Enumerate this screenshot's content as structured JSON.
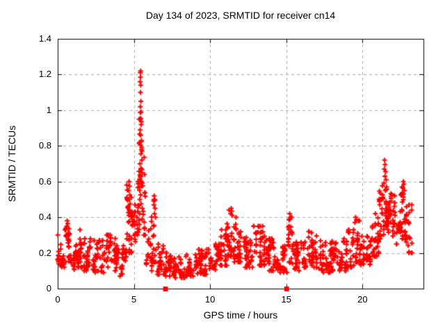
{
  "chart_data": {
    "type": "scatter",
    "title": "Day 134 of 2023, SRMTID for receiver cn14",
    "xlabel": "GPS time / hours",
    "ylabel": "SRMTID / TECUs",
    "xlim": [
      0,
      24
    ],
    "ylim": [
      0,
      1.4
    ],
    "xticks": {
      "values": [
        0,
        5,
        10,
        15,
        20
      ],
      "labels": [
        "0",
        "5",
        "10",
        "15",
        "20"
      ]
    },
    "yticks": {
      "values": [
        0,
        0.2,
        0.4,
        0.6,
        0.8,
        1.0,
        1.2,
        1.4
      ],
      "labels": [
        "0",
        "0.2",
        "0.4",
        "0.6",
        "0.8",
        "1",
        "1.2",
        "1.4"
      ]
    },
    "grid": true,
    "legend": "none",
    "colors": {
      "marker": "#ff0000",
      "grid": "#a8a8a8",
      "axis": "#000000",
      "background": "#ffffff"
    },
    "marker": "plus",
    "seed": 7,
    "series": [
      {
        "name": "SRMTID",
        "band_segments": [
          [
            0.0,
            0.5,
            30,
            0.12,
            0.3
          ],
          [
            0.5,
            0.8,
            25,
            0.15,
            0.36
          ],
          [
            0.8,
            1.3,
            30,
            0.07,
            0.26
          ],
          [
            1.3,
            1.6,
            22,
            0.12,
            0.33
          ],
          [
            1.6,
            2.3,
            40,
            0.1,
            0.28
          ],
          [
            2.3,
            3.1,
            45,
            0.09,
            0.27
          ],
          [
            3.1,
            3.9,
            45,
            0.1,
            0.3
          ],
          [
            3.9,
            4.5,
            35,
            0.07,
            0.24
          ],
          [
            4.5,
            4.85,
            25,
            0.2,
            0.58
          ],
          [
            4.85,
            5.15,
            20,
            0.25,
            0.47
          ],
          [
            5.15,
            5.35,
            15,
            0.3,
            0.6
          ],
          [
            5.35,
            5.55,
            18,
            0.45,
            1.05
          ],
          [
            5.55,
            5.8,
            18,
            0.3,
            0.85
          ],
          [
            5.8,
            6.2,
            25,
            0.1,
            0.42
          ],
          [
            6.2,
            6.5,
            20,
            0.15,
            0.5
          ],
          [
            6.5,
            7.0,
            30,
            0.08,
            0.25
          ],
          [
            7.0,
            7.6,
            35,
            0.07,
            0.2
          ],
          [
            7.6,
            8.4,
            45,
            0.06,
            0.18
          ],
          [
            8.4,
            9.2,
            45,
            0.07,
            0.19
          ],
          [
            9.2,
            10.0,
            45,
            0.08,
            0.22
          ],
          [
            10.0,
            10.7,
            40,
            0.09,
            0.25
          ],
          [
            10.7,
            11.1,
            28,
            0.13,
            0.33
          ],
          [
            11.1,
            11.6,
            35,
            0.18,
            0.44
          ],
          [
            11.6,
            12.1,
            32,
            0.15,
            0.4
          ],
          [
            12.1,
            12.8,
            40,
            0.12,
            0.32
          ],
          [
            12.8,
            13.6,
            45,
            0.13,
            0.35
          ],
          [
            13.6,
            14.4,
            45,
            0.1,
            0.28
          ],
          [
            14.4,
            15.1,
            40,
            0.09,
            0.24
          ],
          [
            15.1,
            15.45,
            25,
            0.14,
            0.4
          ],
          [
            15.45,
            16.2,
            40,
            0.1,
            0.3
          ],
          [
            16.2,
            17.0,
            45,
            0.12,
            0.32
          ],
          [
            17.0,
            18.0,
            55,
            0.09,
            0.27
          ],
          [
            18.0,
            19.0,
            55,
            0.1,
            0.28
          ],
          [
            19.0,
            19.45,
            28,
            0.12,
            0.33
          ],
          [
            19.45,
            19.8,
            22,
            0.15,
            0.38
          ],
          [
            19.8,
            20.6,
            45,
            0.13,
            0.3
          ],
          [
            20.6,
            21.1,
            32,
            0.18,
            0.42
          ],
          [
            21.1,
            21.4,
            25,
            0.28,
            0.58
          ],
          [
            21.4,
            21.65,
            20,
            0.35,
            0.68
          ],
          [
            21.65,
            22.1,
            30,
            0.28,
            0.55
          ],
          [
            22.1,
            22.5,
            28,
            0.25,
            0.52
          ],
          [
            22.5,
            22.85,
            26,
            0.28,
            0.6
          ],
          [
            22.85,
            23.25,
            26,
            0.2,
            0.47
          ]
        ],
        "peak_points": [
          [
            5.42,
            1.21
          ],
          [
            5.44,
            1.22
          ],
          [
            5.43,
            1.185
          ],
          [
            5.41,
            1.16
          ],
          [
            5.45,
            1.14
          ],
          [
            5.43,
            1.1
          ],
          [
            5.46,
            1.05
          ],
          [
            5.42,
            1.02
          ],
          [
            5.47,
            0.99
          ],
          [
            5.44,
            0.955
          ],
          [
            5.48,
            0.92
          ],
          [
            5.41,
            0.89
          ],
          [
            5.45,
            0.86
          ],
          [
            5.49,
            0.83
          ],
          [
            5.43,
            0.805
          ],
          [
            5.5,
            0.78
          ],
          [
            5.46,
            0.755
          ],
          [
            5.52,
            0.72
          ],
          [
            5.4,
            0.7
          ],
          [
            5.47,
            0.675
          ],
          [
            5.53,
            0.65
          ],
          [
            5.42,
            0.625
          ],
          [
            5.49,
            0.6
          ],
          [
            5.51,
            0.575
          ],
          [
            5.38,
            0.55
          ],
          [
            5.44,
            0.525
          ],
          [
            5.39,
            0.5
          ],
          [
            5.47,
            0.475
          ],
          [
            5.55,
            0.45
          ],
          [
            5.37,
            0.42
          ],
          [
            5.54,
            0.39
          ],
          [
            5.36,
            0.36
          ],
          [
            4.68,
            0.6
          ],
          [
            4.71,
            0.575
          ],
          [
            4.66,
            0.55
          ],
          [
            4.73,
            0.525
          ],
          [
            4.69,
            0.5
          ],
          [
            4.75,
            0.475
          ],
          [
            4.64,
            0.45
          ],
          [
            4.72,
            0.43
          ],
          [
            4.67,
            0.41
          ],
          [
            6.33,
            0.52
          ],
          [
            6.37,
            0.495
          ],
          [
            6.31,
            0.47
          ],
          [
            6.39,
            0.45
          ],
          [
            6.35,
            0.42
          ],
          [
            6.41,
            0.4
          ],
          [
            11.38,
            0.45
          ],
          [
            11.42,
            0.435
          ],
          [
            11.35,
            0.42
          ],
          [
            11.45,
            0.41
          ],
          [
            15.22,
            0.42
          ],
          [
            15.27,
            0.4
          ],
          [
            15.18,
            0.385
          ],
          [
            19.55,
            0.4
          ],
          [
            19.6,
            0.385
          ],
          [
            19.5,
            0.37
          ],
          [
            0.62,
            0.38
          ],
          [
            0.66,
            0.365
          ],
          [
            0.6,
            0.35
          ],
          [
            21.45,
            0.72
          ],
          [
            21.48,
            0.695
          ],
          [
            21.43,
            0.67
          ],
          [
            21.52,
            0.655
          ],
          [
            21.47,
            0.63
          ],
          [
            21.55,
            0.61
          ],
          [
            21.41,
            0.59
          ],
          [
            21.58,
            0.57
          ],
          [
            21.5,
            0.55
          ],
          [
            22.68,
            0.6
          ],
          [
            22.72,
            0.585
          ],
          [
            22.65,
            0.565
          ],
          [
            22.75,
            0.55
          ],
          [
            22.7,
            0.53
          ]
        ],
        "zero_marker_shape": "filled-square",
        "zero_marker_points": [
          [
            7.05,
            0
          ],
          [
            15.0,
            0
          ]
        ]
      }
    ]
  }
}
